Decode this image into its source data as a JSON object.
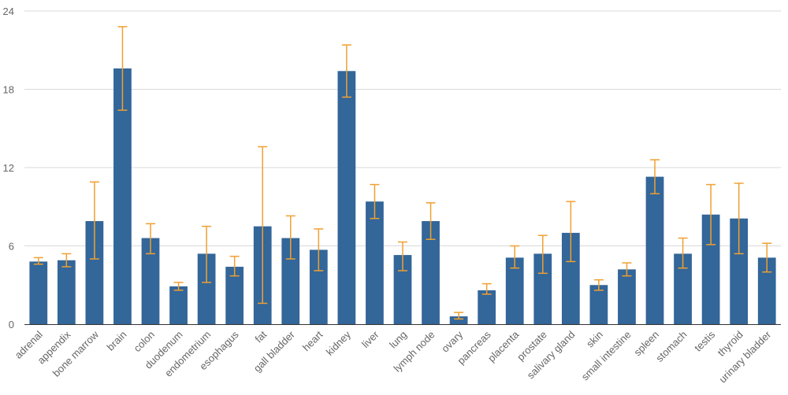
{
  "chart_data": {
    "type": "bar",
    "title": "",
    "xlabel": "",
    "ylabel": "",
    "ylim": [
      0,
      24
    ],
    "yticks": [
      0,
      6,
      12,
      18,
      24
    ],
    "grid": true,
    "error_bars": true,
    "colors": {
      "bar": "#336699",
      "error": "#f0a030",
      "grid": "#d9d9d9",
      "axis": "#333333"
    },
    "categories": [
      "adrenal",
      "appendix",
      "bone marrow",
      "brain",
      "colon",
      "duodenum",
      "endometrium",
      "esophagus",
      "fat",
      "gall bladder",
      "heart",
      "kidney",
      "liver",
      "lung",
      "lymph node",
      "ovary",
      "pancreas",
      "placenta",
      "prostate",
      "salivary gland",
      "skin",
      "small intestine",
      "spleen",
      "stomach",
      "testis",
      "thyroid",
      "urinary bladder"
    ],
    "values": [
      4.8,
      4.9,
      7.9,
      19.6,
      6.6,
      2.9,
      5.4,
      4.4,
      7.5,
      6.6,
      5.7,
      19.4,
      9.4,
      5.3,
      7.9,
      0.6,
      2.6,
      5.1,
      5.4,
      7.0,
      3.0,
      4.2,
      11.3,
      5.4,
      8.4,
      8.1,
      5.1
    ],
    "error_low": [
      4.6,
      4.4,
      5.0,
      16.4,
      5.4,
      2.6,
      3.2,
      3.7,
      1.6,
      5.0,
      4.1,
      17.4,
      8.1,
      4.1,
      6.5,
      0.4,
      2.3,
      4.3,
      3.9,
      4.8,
      2.6,
      3.7,
      10.0,
      4.3,
      6.1,
      5.4,
      4.0
    ],
    "error_high": [
      5.1,
      5.4,
      10.9,
      22.8,
      7.7,
      3.2,
      7.5,
      5.2,
      13.6,
      8.3,
      7.3,
      21.4,
      10.7,
      6.3,
      9.3,
      0.9,
      3.1,
      6.0,
      6.8,
      9.4,
      3.4,
      4.7,
      12.6,
      6.6,
      10.7,
      10.8,
      6.2
    ]
  }
}
